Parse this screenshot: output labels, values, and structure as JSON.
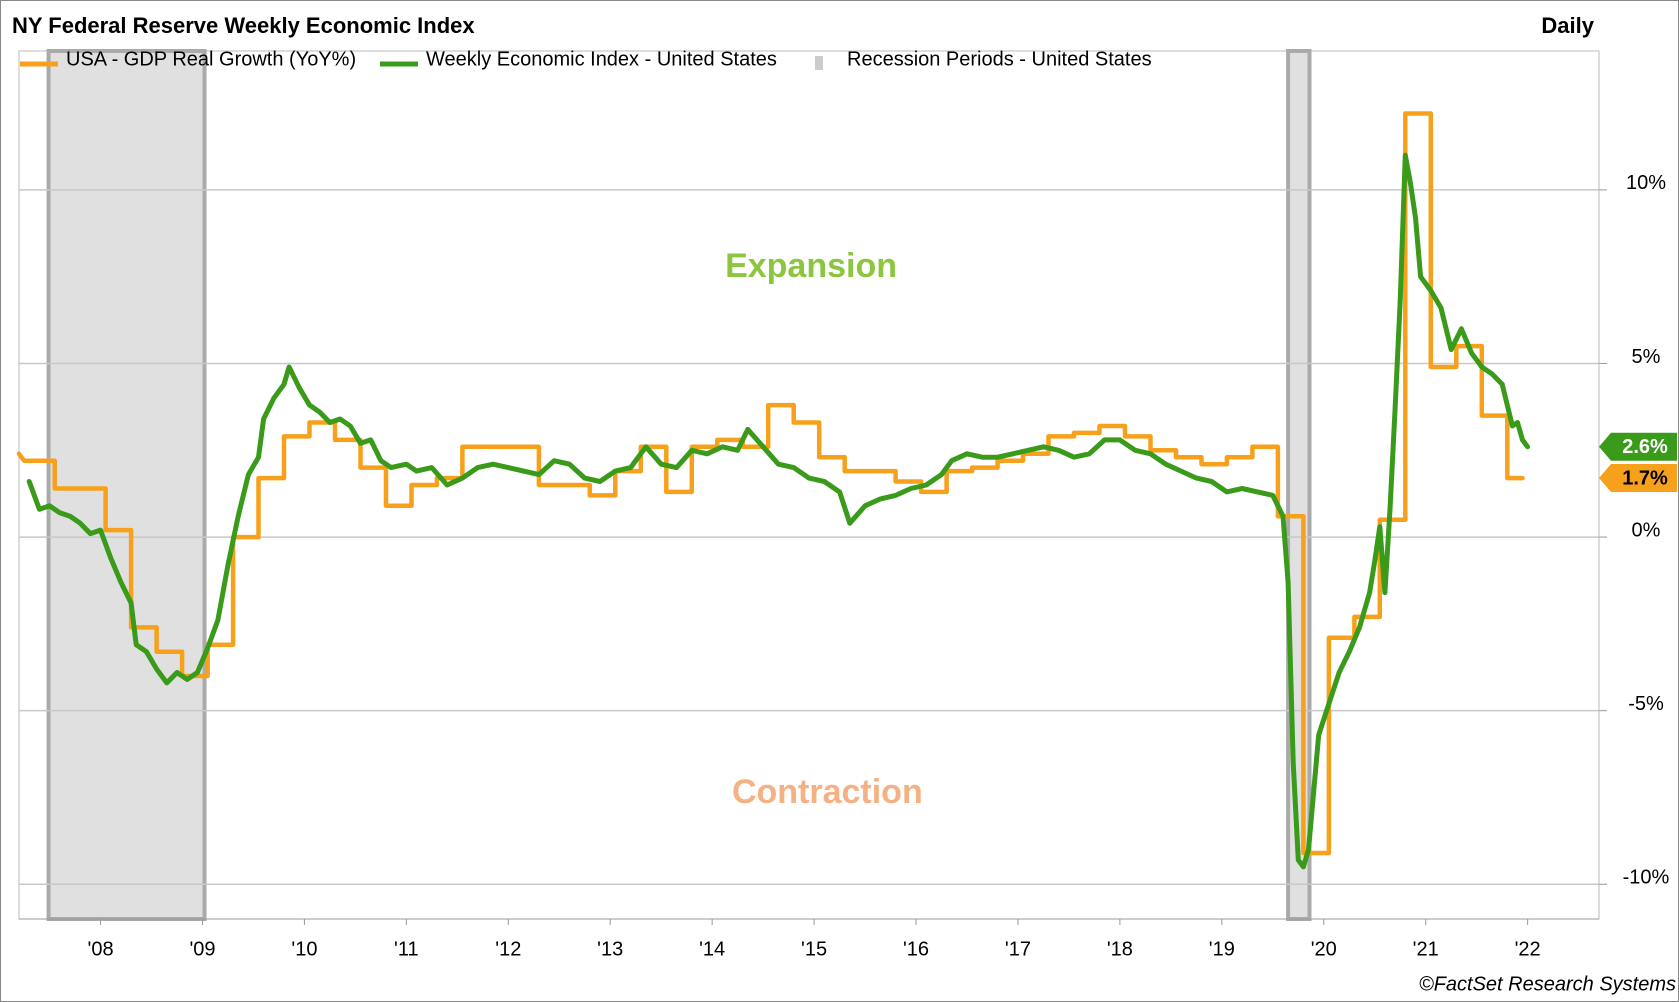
{
  "chart_data": {
    "type": "line",
    "title": "NY Federal Reserve Weekly Economic Index",
    "frequency": "Daily",
    "source": "©FactSet Research Systems",
    "annotations": [
      {
        "text": "Expansion",
        "x": 2015.47,
        "y": 7.75,
        "color": "#8cc63f"
      },
      {
        "text": "Contraction",
        "x": 2015.63,
        "y": -7.4,
        "color": "#f5b183"
      }
    ],
    "recession_name": "Recession Periods - United States",
    "recession_color": "#e0e0e0",
    "recessions": [
      [
        2007.99,
        2009.52
      ],
      [
        2020.15,
        2020.36
      ]
    ],
    "xlim": [
      2007.7,
      2023.2
    ],
    "xticks": [
      {
        "value": 2008.5,
        "label": "'08"
      },
      {
        "value": 2009.5,
        "label": "'09"
      },
      {
        "value": 2010.5,
        "label": "'10"
      },
      {
        "value": 2011.5,
        "label": "'11"
      },
      {
        "value": 2012.5,
        "label": "'12"
      },
      {
        "value": 2013.5,
        "label": "'13"
      },
      {
        "value": 2014.5,
        "label": "'14"
      },
      {
        "value": 2015.5,
        "label": "'15"
      },
      {
        "value": 2016.5,
        "label": "'16"
      },
      {
        "value": 2017.5,
        "label": "'17"
      },
      {
        "value": 2018.5,
        "label": "'18"
      },
      {
        "value": 2019.5,
        "label": "'19"
      },
      {
        "value": 2020.5,
        "label": "'20"
      },
      {
        "value": 2021.5,
        "label": "'21"
      },
      {
        "value": 2022.5,
        "label": "'22"
      }
    ],
    "ylim": [
      -11,
      14
    ],
    "yticks": [
      {
        "value": -10,
        "label": "-10%"
      },
      {
        "value": -5,
        "label": "-5%"
      },
      {
        "value": 0,
        "label": "0%"
      },
      {
        "value": 5,
        "label": "5%"
      },
      {
        "value": 10,
        "label": "10%"
      }
    ],
    "grid": true,
    "series": [
      {
        "name": "USA - GDP Real Growth (YoY%)",
        "color": "#f7a01c",
        "last_value_label": "1.7%",
        "x": [
          2007.7,
          2007.75,
          2008.05,
          2008.05,
          2008.55,
          2008.55,
          2008.8,
          2008.8,
          2009.05,
          2009.05,
          2009.3,
          2009.3,
          2009.55,
          2009.55,
          2009.8,
          2009.8,
          2010.05,
          2010.05,
          2010.3,
          2010.3,
          2010.55,
          2010.55,
          2010.8,
          2010.8,
          2011.05,
          2011.05,
          2011.3,
          2011.3,
          2011.55,
          2011.55,
          2011.8,
          2011.8,
          2012.05,
          2012.05,
          2012.8,
          2012.8,
          2013.3,
          2013.3,
          2013.55,
          2013.55,
          2013.8,
          2013.8,
          2014.05,
          2014.05,
          2014.3,
          2014.3,
          2014.55,
          2014.55,
          2014.8,
          2014.8,
          2015.05,
          2015.05,
          2015.3,
          2015.3,
          2015.55,
          2015.55,
          2015.8,
          2015.8,
          2016.3,
          2016.3,
          2016.55,
          2016.55,
          2016.8,
          2016.8,
          2017.05,
          2017.05,
          2017.3,
          2017.3,
          2017.55,
          2017.55,
          2017.8,
          2017.8,
          2018.05,
          2018.05,
          2018.3,
          2018.3,
          2018.55,
          2018.55,
          2018.8,
          2018.8,
          2019.05,
          2019.05,
          2019.3,
          2019.3,
          2019.55,
          2019.55,
          2019.8,
          2019.8,
          2020.05,
          2020.05,
          2020.3,
          2020.3,
          2020.55,
          2020.55,
          2020.8,
          2020.8,
          2021.05,
          2021.05,
          2021.3,
          2021.3,
          2021.55,
          2021.55,
          2021.8,
          2021.8,
          2022.05,
          2022.05,
          2022.3,
          2022.3,
          2022.45
        ],
        "values": [
          2.4,
          2.2,
          2.2,
          1.4,
          1.4,
          0.2,
          0.2,
          -2.6,
          -2.6,
          -3.3,
          -3.3,
          -4.0,
          -4.0,
          -3.1,
          -3.1,
          0.0,
          0.0,
          1.7,
          1.7,
          2.9,
          2.9,
          3.3,
          3.3,
          2.8,
          2.8,
          2.0,
          2.0,
          0.9,
          0.9,
          1.5,
          1.5,
          1.7,
          1.7,
          2.6,
          2.6,
          1.5,
          1.5,
          1.2,
          1.2,
          1.9,
          1.9,
          2.6,
          2.6,
          1.3,
          1.3,
          2.6,
          2.6,
          2.8,
          2.8,
          2.6,
          2.6,
          3.8,
          3.8,
          3.3,
          3.3,
          2.3,
          2.3,
          1.9,
          1.9,
          1.6,
          1.6,
          1.3,
          1.3,
          1.9,
          1.9,
          2.0,
          2.0,
          2.2,
          2.2,
          2.4,
          2.4,
          2.9,
          2.9,
          3.0,
          3.0,
          3.2,
          3.2,
          2.9,
          2.9,
          2.5,
          2.5,
          2.3,
          2.3,
          2.1,
          2.1,
          2.3,
          2.3,
          2.6,
          2.6,
          0.6,
          0.6,
          -9.1,
          -9.1,
          -2.9,
          -2.9,
          -2.3,
          -2.3,
          0.5,
          0.5,
          12.2,
          12.2,
          4.9,
          4.9,
          5.5,
          5.5,
          3.5,
          3.5,
          1.7,
          1.7
        ]
      },
      {
        "name": "Weekly Economic Index - United States",
        "color": "#3a9a1a",
        "last_value_label": "2.6%",
        "x": [
          2007.8,
          2007.9,
          2008.0,
          2008.1,
          2008.2,
          2008.3,
          2008.4,
          2008.5,
          2008.6,
          2008.7,
          2008.8,
          2008.85,
          2008.95,
          2009.05,
          2009.15,
          2009.25,
          2009.35,
          2009.45,
          2009.55,
          2009.65,
          2009.75,
          2009.85,
          2009.95,
          2010.05,
          2010.1,
          2010.2,
          2010.3,
          2010.35,
          2010.45,
          2010.55,
          2010.65,
          2010.75,
          2010.85,
          2010.95,
          2011.05,
          2011.15,
          2011.25,
          2011.35,
          2011.5,
          2011.6,
          2011.75,
          2011.9,
          2012.05,
          2012.2,
          2012.35,
          2012.5,
          2012.65,
          2012.8,
          2012.95,
          2013.1,
          2013.25,
          2013.4,
          2013.55,
          2013.7,
          2013.85,
          2014.0,
          2014.15,
          2014.3,
          2014.45,
          2014.6,
          2014.75,
          2014.85,
          2015.0,
          2015.15,
          2015.3,
          2015.45,
          2015.6,
          2015.75,
          2015.85,
          2016.0,
          2016.15,
          2016.3,
          2016.45,
          2016.6,
          2016.75,
          2016.85,
          2017.0,
          2017.15,
          2017.3,
          2017.45,
          2017.6,
          2017.75,
          2017.9,
          2018.05,
          2018.2,
          2018.35,
          2018.5,
          2018.65,
          2018.8,
          2018.95,
          2019.1,
          2019.25,
          2019.4,
          2019.55,
          2019.7,
          2019.85,
          2020.0,
          2020.1,
          2020.15,
          2020.2,
          2020.25,
          2020.3,
          2020.35,
          2020.45,
          2020.55,
          2020.65,
          2020.75,
          2020.85,
          2020.95,
          2021.0,
          2021.05,
          2021.1,
          2021.15,
          2021.2,
          2021.25,
          2021.3,
          2021.35,
          2021.4,
          2021.45,
          2021.55,
          2021.65,
          2021.75,
          2021.85,
          2021.95,
          2022.05,
          2022.15,
          2022.25,
          2022.35,
          2022.4,
          2022.45,
          2022.5
        ],
        "values": [
          1.6,
          0.8,
          0.9,
          0.7,
          0.6,
          0.4,
          0.1,
          0.2,
          -0.6,
          -1.3,
          -1.9,
          -3.1,
          -3.3,
          -3.8,
          -4.2,
          -3.9,
          -4.1,
          -3.9,
          -3.2,
          -2.4,
          -0.8,
          0.6,
          1.8,
          2.3,
          3.4,
          4.0,
          4.4,
          4.9,
          4.3,
          3.8,
          3.6,
          3.3,
          3.4,
          3.2,
          2.7,
          2.8,
          2.2,
          2.0,
          2.1,
          1.9,
          2.0,
          1.5,
          1.7,
          2.0,
          2.1,
          2.0,
          1.9,
          1.8,
          2.2,
          2.1,
          1.7,
          1.6,
          1.9,
          2.0,
          2.6,
          2.1,
          2.0,
          2.5,
          2.4,
          2.6,
          2.5,
          3.1,
          2.6,
          2.1,
          2.0,
          1.7,
          1.6,
          1.3,
          0.4,
          0.9,
          1.1,
          1.2,
          1.4,
          1.5,
          1.8,
          2.2,
          2.4,
          2.3,
          2.3,
          2.4,
          2.5,
          2.6,
          2.5,
          2.3,
          2.4,
          2.8,
          2.8,
          2.5,
          2.4,
          2.1,
          1.9,
          1.7,
          1.6,
          1.3,
          1.4,
          1.3,
          1.2,
          0.6,
          -1.3,
          -6.5,
          -9.3,
          -9.5,
          -9.0,
          -5.7,
          -4.8,
          -3.9,
          -3.3,
          -2.6,
          -1.6,
          -0.7,
          0.3,
          -1.6,
          0.8,
          3.7,
          6.8,
          11.0,
          10.2,
          9.2,
          7.5,
          7.1,
          6.6,
          5.4,
          6.0,
          5.3,
          4.9,
          4.7,
          4.4,
          3.2,
          3.3,
          2.8,
          2.6
        ]
      }
    ]
  }
}
